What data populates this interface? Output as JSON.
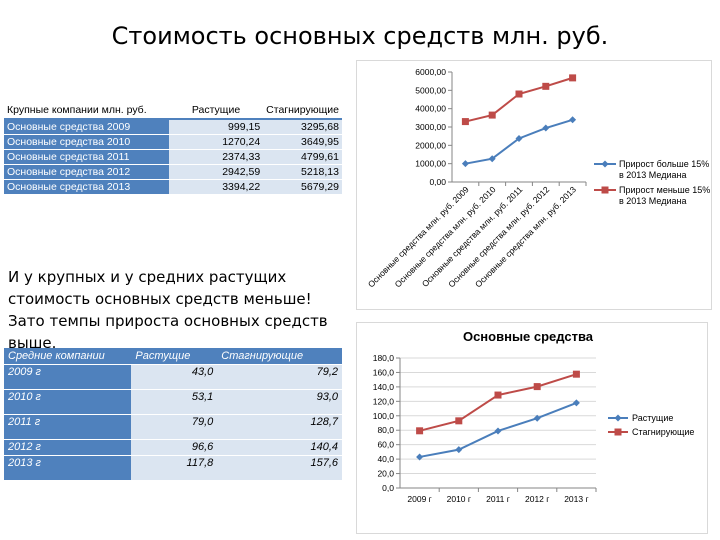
{
  "slide": {
    "title": "Стоимость основных средств млн. руб.",
    "paragraph": "И у крупных и у средних  растущих стоимость основных средств меньше! Зато темпы прироста основных средств выше."
  },
  "table_large": {
    "headers": [
      "Крупные компании млн. руб.",
      "Растущие",
      "Стагнирующие"
    ],
    "rows": [
      {
        "label": "Основные средства 2009",
        "growing": "999,15",
        "stagnating": "3295,68"
      },
      {
        "label": "Основные средства 2010",
        "growing": "1270,24",
        "stagnating": "3649,95"
      },
      {
        "label": "Основные средства 2011",
        "growing": "2374,33",
        "stagnating": "4799,61"
      },
      {
        "label": "Основные средства 2012",
        "growing": "2942,59",
        "stagnating": "5218,13"
      },
      {
        "label": "Основные средства 2013",
        "growing": "3394,22",
        "stagnating": "5679,29"
      }
    ]
  },
  "table_medium": {
    "headers": [
      "Средние компании",
      "Растущие",
      "Стагнирующие"
    ],
    "rows": [
      {
        "label": "2009 г",
        "growing": "43,0",
        "stagnating": "79,2"
      },
      {
        "label": "2010 г",
        "growing": "53,1",
        "stagnating": "93,0"
      },
      {
        "label": "2011 г",
        "growing": "79,0",
        "stagnating": "128,7"
      },
      {
        "label": "2012 г",
        "growing": "96,6",
        "stagnating": "140,4"
      },
      {
        "label": "2013 г",
        "growing": "117,8",
        "stagnating": "157,6"
      }
    ]
  },
  "chart_data": [
    {
      "type": "line",
      "title": "",
      "categories": [
        "Основные средства млн. руб. 2009",
        "Основные средства млн. руб. 2010",
        "Основные средства млн. руб. 2011",
        "Основные средства млн. руб. 2012",
        "Основные средства млн. руб. 2013"
      ],
      "series": [
        {
          "name": "Прирост больше 15% в 2013 Медиана",
          "values": [
            999.15,
            1270.24,
            2374.33,
            2942.59,
            3394.22
          ],
          "color": "#4a7ebb"
        },
        {
          "name": "Прирост меньше 15% в 2013 Медиана",
          "values": [
            3295.68,
            3649.95,
            4799.61,
            5218.13,
            5679.29
          ],
          "color": "#be4b48"
        }
      ],
      "ylim": [
        0,
        6000
      ],
      "yticks": [
        "0,00",
        "1000,00",
        "2000,00",
        "3000,00",
        "4000,00",
        "5000,00",
        "6000,00"
      ],
      "legend": "right",
      "grid": false
    },
    {
      "type": "line",
      "title": "Основные средства",
      "categories": [
        "2009 г",
        "2010 г",
        "2011 г",
        "2012 г",
        "2013 г"
      ],
      "series": [
        {
          "name": "Растущие",
          "values": [
            43.0,
            53.1,
            79.0,
            96.6,
            117.8
          ],
          "color": "#4a7ebb"
        },
        {
          "name": "Стагнирующие",
          "values": [
            79.2,
            93.0,
            128.7,
            140.4,
            157.6
          ],
          "color": "#be4b48"
        }
      ],
      "ylim": [
        0,
        180
      ],
      "yticks": [
        "0,0",
        "20,0",
        "40,0",
        "60,0",
        "80,0",
        "100,0",
        "120,0",
        "140,0",
        "160,0",
        "180,0"
      ],
      "legend": "right",
      "grid": true
    }
  ]
}
